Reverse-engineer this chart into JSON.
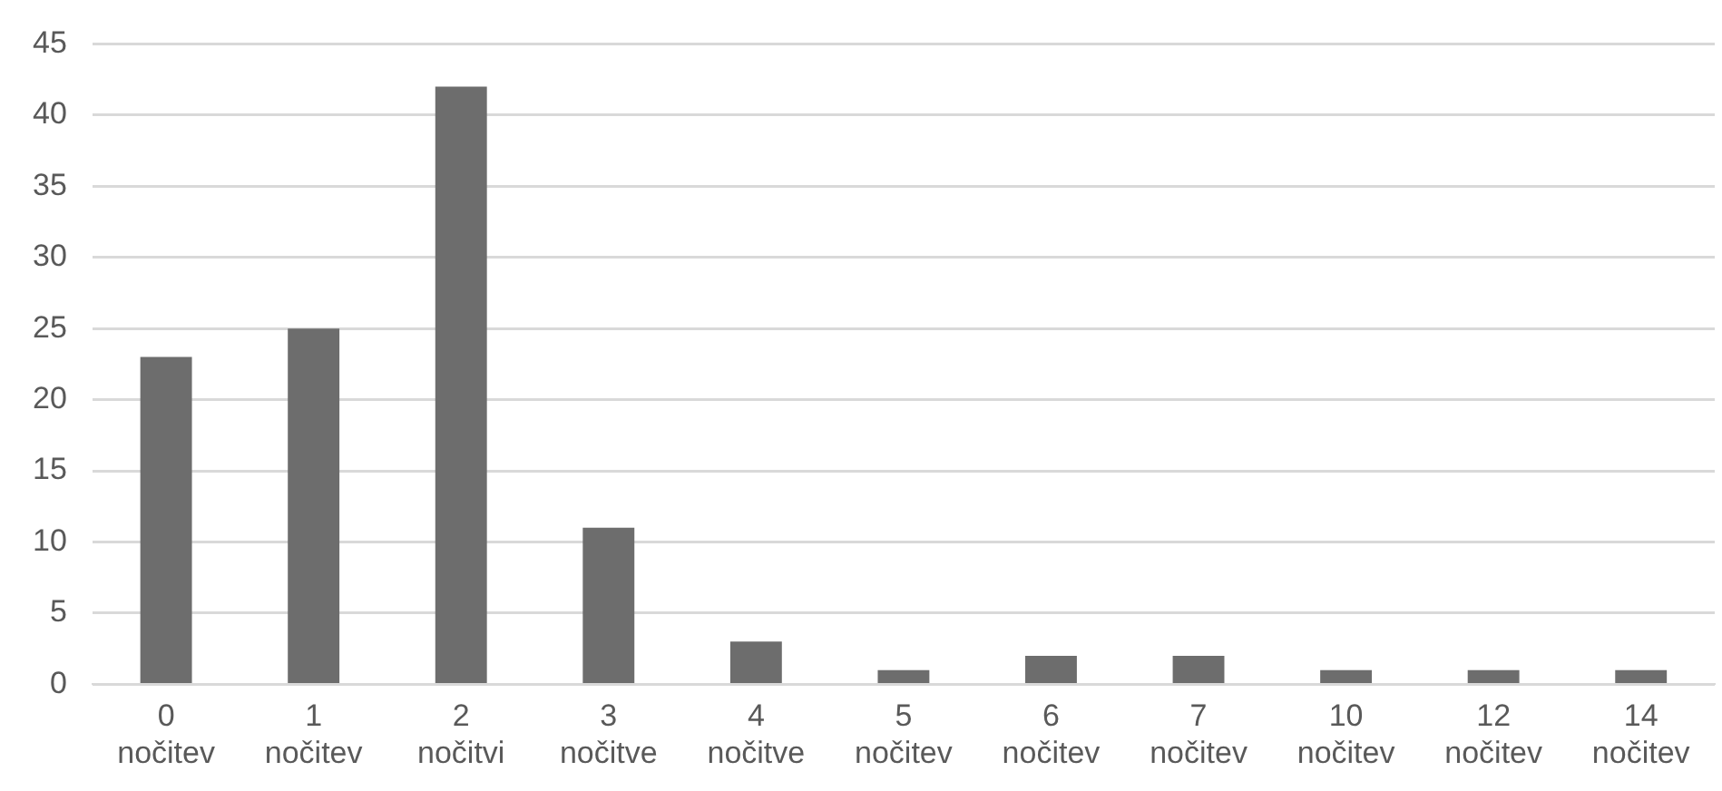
{
  "chart_data": {
    "type": "bar",
    "categories": [
      "0 nočitev",
      "1 nočitev",
      "2 nočitvi",
      "3 nočitve",
      "4 nočitve",
      "5 nočitev",
      "6 nočitev",
      "7 nočitev",
      "10 nočitev",
      "12 nočitev",
      "14 nočitev"
    ],
    "values": [
      23,
      25,
      42,
      11,
      3,
      1,
      2,
      2,
      1,
      1,
      1
    ],
    "color": "#6d6d6d",
    "ylim": [
      0,
      45
    ],
    "yticks": [
      0,
      5,
      10,
      15,
      20,
      25,
      30,
      35,
      40,
      45
    ],
    "grid": "y",
    "legend": false
  }
}
